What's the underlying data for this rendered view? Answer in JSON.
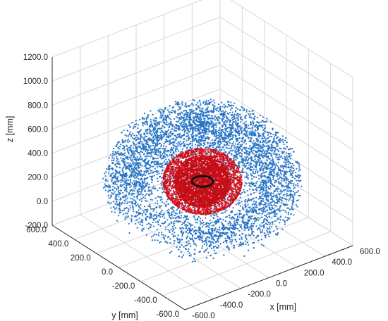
{
  "chart_data": {
    "type": "scatter",
    "view": "3d",
    "xlabel": "x [mm]",
    "ylabel": "y [mm]",
    "zlabel": "z [mm]",
    "xlim": [
      -600,
      600
    ],
    "ylim": [
      -600,
      600
    ],
    "zlim": [
      -200,
      1200
    ],
    "x_ticks": [
      "-600.0",
      "-400.0",
      "-200.0",
      "0.0",
      "200.0",
      "400.0",
      "600.0"
    ],
    "y_ticks": [
      "-600.0",
      "-400.0",
      "-200.0",
      "0.0",
      "200.0",
      "400.0",
      "600.0"
    ],
    "z_ticks": [
      "-200.0",
      "0.0",
      "200.0",
      "400.0",
      "600.0",
      "800.0",
      "1000.0",
      "1200.0"
    ],
    "grid": true,
    "series": [
      {
        "kind": "points",
        "color": "#1f6fc4",
        "shape": "hemispherical shell (upper), open at bottom",
        "center": [
          0,
          0,
          250
        ],
        "radius_range": [
          330,
          560
        ],
        "approx_point_count": 5000
      },
      {
        "kind": "surface-points",
        "color": "#d0121e",
        "shape": "sphere",
        "center": [
          0,
          0,
          250
        ],
        "radius": 220
      },
      {
        "kind": "ring",
        "color": "#111111",
        "shape": "horizontal circle",
        "center": [
          0,
          0,
          250
        ],
        "radius": 60
      }
    ]
  }
}
